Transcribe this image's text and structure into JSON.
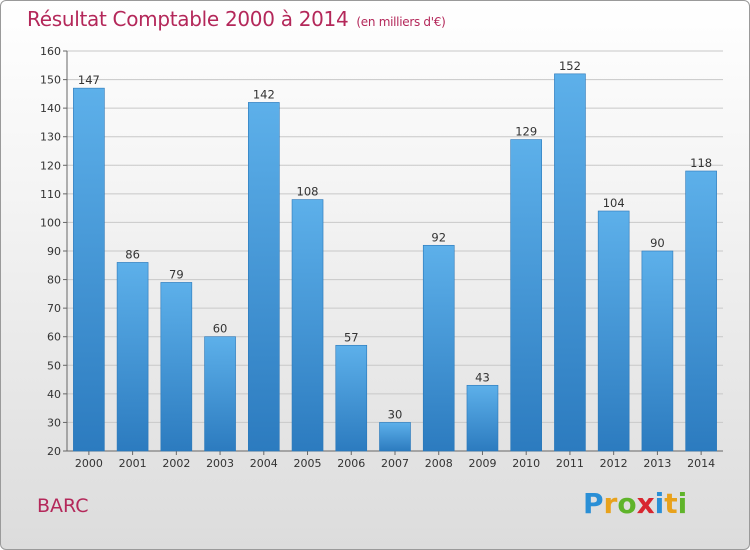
{
  "header": {
    "title": "Résultat Comptable 2000 à 2014",
    "subtitle": "(en milliers d'€)"
  },
  "commune": "BARC",
  "logo": {
    "text": "Proxiti",
    "letters": [
      {
        "char": "P",
        "color": "#2a8fd6"
      },
      {
        "char": "r",
        "color": "#e8a21c"
      },
      {
        "char": "o",
        "color": "#5fb42a"
      },
      {
        "char": "x",
        "color": "#d8262f"
      },
      {
        "char": "i",
        "color": "#2a8fd6"
      },
      {
        "char": "t",
        "color": "#e8a21c"
      },
      {
        "char": "i",
        "color": "#5fb42a"
      }
    ]
  },
  "colors": {
    "title": "#b4285a",
    "bar_top": "#5db0ea",
    "bar_bottom": "#2c7bbf",
    "grid": "#c8c8c8"
  },
  "chart_data": {
    "type": "bar",
    "title": "Résultat Comptable 2000 à 2014",
    "subtitle": "(en milliers d'€)",
    "categories": [
      "2000",
      "2001",
      "2002",
      "2003",
      "2004",
      "2005",
      "2006",
      "2007",
      "2008",
      "2009",
      "2010",
      "2011",
      "2012",
      "2013",
      "2014"
    ],
    "values": [
      147,
      86,
      79,
      60,
      142,
      108,
      57,
      30,
      92,
      43,
      129,
      152,
      104,
      90,
      118
    ],
    "data_labels": [
      "147",
      "86",
      "79",
      "60",
      "142",
      "108",
      "57",
      "30",
      "92",
      "43",
      "129",
      "152",
      "104",
      "90",
      "118"
    ],
    "yticks": [
      20,
      30,
      40,
      50,
      60,
      70,
      80,
      90,
      100,
      110,
      120,
      130,
      140,
      150,
      160
    ],
    "ylim": [
      20,
      160
    ],
    "xlabel": "",
    "ylabel": "",
    "grid": true,
    "legend": "none"
  }
}
